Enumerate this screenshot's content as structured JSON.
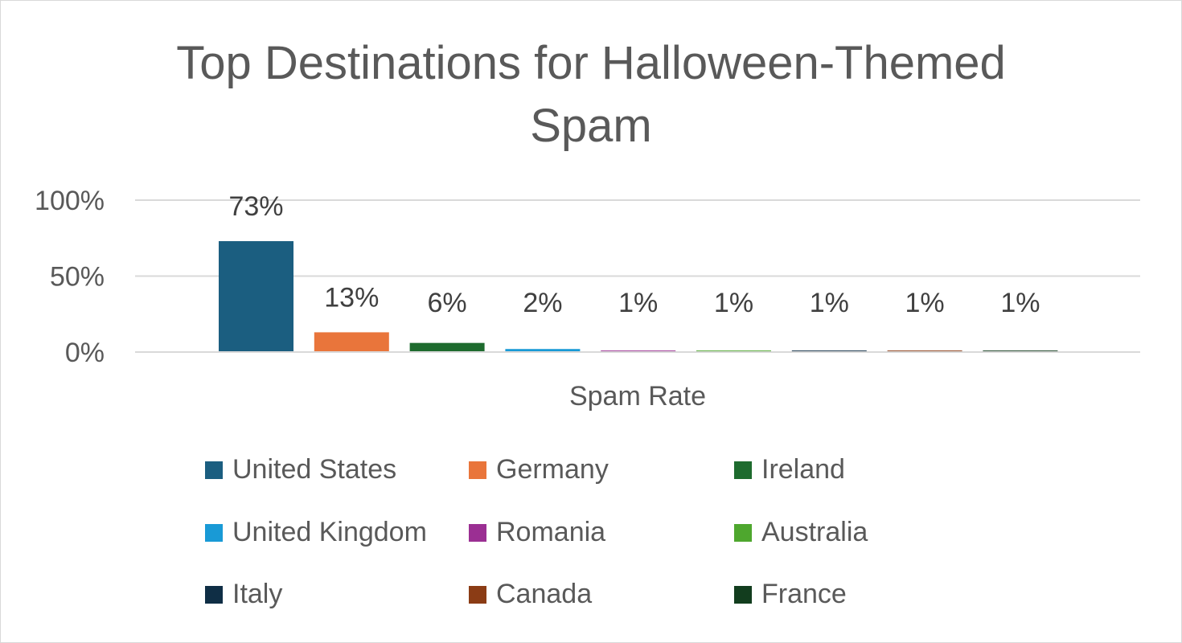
{
  "chart_data": {
    "type": "bar",
    "title": "Top Destinations for Halloween-Themed Spam",
    "xlabel": "Spam Rate",
    "ylabel": "",
    "categories": [
      "Spam Rate"
    ],
    "ylim": [
      0,
      1.0
    ],
    "yticks": [
      {
        "value": 0,
        "label": "0%"
      },
      {
        "value": 0.5,
        "label": "50%"
      },
      {
        "value": 1.0,
        "label": "100%"
      }
    ],
    "grid": true,
    "legend_position": "bottom",
    "series": [
      {
        "name": "United States",
        "values": [
          0.73
        ],
        "label": "73%",
        "color": "#1b5e80"
      },
      {
        "name": "Germany",
        "values": [
          0.13
        ],
        "label": "13%",
        "color": "#e9753b"
      },
      {
        "name": "Ireland",
        "values": [
          0.06
        ],
        "label": "6%",
        "color": "#1e6b2e"
      },
      {
        "name": "United Kingdom",
        "values": [
          0.02
        ],
        "label": "2%",
        "color": "#199ad6"
      },
      {
        "name": "Romania",
        "values": [
          0.01
        ],
        "label": "1%",
        "color": "#9b2f93"
      },
      {
        "name": "Australia",
        "values": [
          0.01
        ],
        "label": "1%",
        "color": "#4ea72e"
      },
      {
        "name": "Italy",
        "values": [
          0.01
        ],
        "label": "1%",
        "color": "#0f2e45"
      },
      {
        "name": "Canada",
        "values": [
          0.01
        ],
        "label": "1%",
        "color": "#8b3c15"
      },
      {
        "name": "France",
        "values": [
          0.01
        ],
        "label": "1%",
        "color": "#123d1e"
      }
    ]
  }
}
